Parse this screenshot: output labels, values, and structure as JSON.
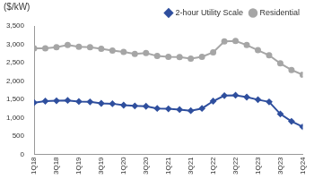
{
  "chart_data": {
    "type": "line",
    "y_label": "($/kW)",
    "categories": [
      "1Q18",
      null,
      "3Q18",
      null,
      "1Q19",
      null,
      "3Q19",
      null,
      "1Q20",
      null,
      "3Q20",
      null,
      "1Q21",
      null,
      "3Q21",
      null,
      "1Q22",
      null,
      "3Q22",
      null,
      "1Q23",
      null,
      "3Q23",
      null,
      "1Q24"
    ],
    "series": [
      {
        "name": "2-hour Utility Scale",
        "color": "#2f4f9e",
        "marker": "diamond",
        "values": [
          1410,
          1450,
          1460,
          1470,
          1440,
          1430,
          1390,
          1380,
          1340,
          1320,
          1310,
          1250,
          1240,
          1220,
          1190,
          1250,
          1450,
          1600,
          1610,
          1560,
          1490,
          1430,
          1100,
          900,
          750
        ]
      },
      {
        "name": "Residential",
        "color": "#a6a6a6",
        "marker": "circle",
        "values": [
          2890,
          2890,
          2920,
          2980,
          2930,
          2920,
          2880,
          2830,
          2790,
          2740,
          2760,
          2680,
          2660,
          2650,
          2610,
          2660,
          2780,
          3080,
          3090,
          2980,
          2840,
          2700,
          2480,
          2300,
          2170
        ]
      }
    ],
    "ylim": [
      0,
      3500
    ],
    "yticks": [
      0,
      500,
      {
        "value": 1000,
        "label": "1,000"
      },
      {
        "value": 1500,
        "label": "1,500"
      },
      {
        "value": 2000,
        "label": "2,000"
      },
      {
        "value": 2500,
        "label": "2,500"
      },
      {
        "value": 3000,
        "label": "3,000"
      },
      {
        "value": 3500,
        "label": "3,500"
      }
    ],
    "grid": false,
    "legend": "top"
  }
}
